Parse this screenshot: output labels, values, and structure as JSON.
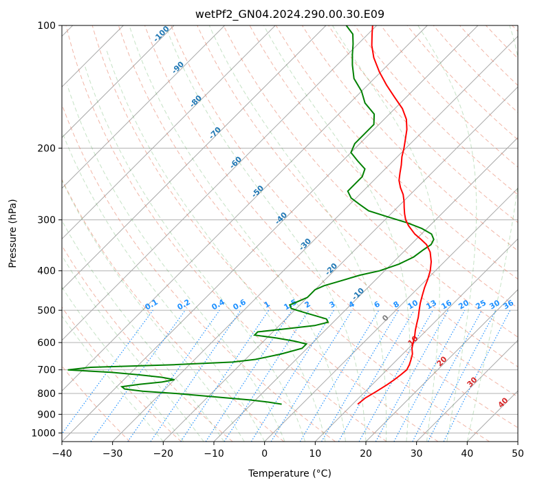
{
  "chart_data": {
    "type": "line",
    "title": "wetPf2_GN04.2024.290.00.30.E09",
    "xlabel": "Temperature (°C)",
    "ylabel": "Pressure (hPa)",
    "xlim": [
      -40,
      50
    ],
    "ylim": [
      1050,
      100
    ],
    "y_scale": "log",
    "grid": true,
    "x_ticks": [
      -40,
      -30,
      -20,
      -10,
      0,
      10,
      20,
      30,
      40,
      50
    ],
    "y_ticks": [
      100,
      200,
      300,
      400,
      500,
      600,
      700,
      800,
      900,
      1000
    ],
    "temperature": {
      "color": "#ff0000",
      "points": [
        [
          850,
          11
        ],
        [
          820,
          11.3
        ],
        [
          790,
          12.2
        ],
        [
          760,
          13
        ],
        [
          740,
          13.4
        ],
        [
          720,
          13.7
        ],
        [
          700,
          13.9
        ],
        [
          680,
          13.4
        ],
        [
          660,
          12.7
        ],
        [
          640,
          11.9
        ],
        [
          620,
          10.7
        ],
        [
          600,
          9.8
        ],
        [
          580,
          8.9
        ],
        [
          560,
          7.8
        ],
        [
          540,
          6.8
        ],
        [
          520,
          5.8
        ],
        [
          500,
          4.6
        ],
        [
          480,
          3.4
        ],
        [
          460,
          2.3
        ],
        [
          440,
          1.2
        ],
        [
          420,
          0.2
        ],
        [
          400,
          -1.0
        ],
        [
          380,
          -2.6
        ],
        [
          360,
          -4.7
        ],
        [
          345,
          -6.9
        ],
        [
          335,
          -9.0
        ],
        [
          325,
          -11.3
        ],
        [
          310,
          -14.2
        ],
        [
          300,
          -15.9
        ],
        [
          290,
          -17.3
        ],
        [
          280,
          -18.6
        ],
        [
          270,
          -19.9
        ],
        [
          260,
          -21.4
        ],
        [
          250,
          -23.3
        ],
        [
          240,
          -25.0
        ],
        [
          230,
          -26.3
        ],
        [
          220,
          -27.6
        ],
        [
          210,
          -29.1
        ],
        [
          200,
          -30.4
        ],
        [
          190,
          -31.9
        ],
        [
          180,
          -33.5
        ],
        [
          170,
          -35.6
        ],
        [
          160,
          -38.5
        ],
        [
          150,
          -42.3
        ],
        [
          140,
          -46.3
        ],
        [
          130,
          -50.3
        ],
        [
          120,
          -54.2
        ],
        [
          112,
          -57.0
        ],
        [
          105,
          -59.2
        ],
        [
          100,
          -60.8
        ]
      ]
    },
    "dewpoint": {
      "color": "#008000",
      "points": [
        [
          850,
          -4
        ],
        [
          840,
          -7
        ],
        [
          830,
          -11
        ],
        [
          815,
          -19
        ],
        [
          800,
          -27
        ],
        [
          790,
          -34
        ],
        [
          780,
          -38
        ],
        [
          770,
          -39
        ],
        [
          760,
          -36
        ],
        [
          750,
          -32
        ],
        [
          740,
          -30
        ],
        [
          730,
          -33
        ],
        [
          720,
          -38
        ],
        [
          710,
          -44
        ],
        [
          700,
          -53
        ],
        [
          690,
          -49
        ],
        [
          680,
          -33
        ],
        [
          670,
          -22
        ],
        [
          660,
          -18
        ],
        [
          640,
          -14
        ],
        [
          620,
          -11
        ],
        [
          605,
          -11
        ],
        [
          595,
          -14
        ],
        [
          585,
          -18
        ],
        [
          575,
          -23
        ],
        [
          565,
          -23
        ],
        [
          555,
          -18
        ],
        [
          545,
          -13
        ],
        [
          535,
          -11
        ],
        [
          525,
          -12
        ],
        [
          515,
          -15
        ],
        [
          505,
          -18
        ],
        [
          495,
          -21
        ],
        [
          485,
          -22
        ],
        [
          475,
          -21
        ],
        [
          465,
          -20
        ],
        [
          455,
          -20
        ],
        [
          445,
          -20
        ],
        [
          435,
          -19
        ],
        [
          425,
          -17
        ],
        [
          410,
          -14
        ],
        [
          400,
          -11
        ],
        [
          385,
          -8.5
        ],
        [
          370,
          -7
        ],
        [
          355,
          -6.5
        ],
        [
          345,
          -6
        ],
        [
          335,
          -6.5
        ],
        [
          325,
          -8
        ],
        [
          315,
          -11
        ],
        [
          305,
          -15
        ],
        [
          295,
          -20
        ],
        [
          285,
          -25
        ],
        [
          275,
          -28
        ],
        [
          265,
          -31
        ],
        [
          255,
          -33
        ],
        [
          245,
          -33
        ],
        [
          235,
          -33
        ],
        [
          225,
          -34
        ],
        [
          215,
          -37
        ],
        [
          205,
          -40
        ],
        [
          195,
          -41
        ],
        [
          185,
          -41
        ],
        [
          175,
          -41
        ],
        [
          165,
          -43
        ],
        [
          155,
          -47
        ],
        [
          145,
          -50
        ],
        [
          135,
          -54
        ],
        [
          125,
          -57
        ],
        [
          118,
          -59
        ],
        [
          111,
          -61
        ],
        [
          105,
          -63
        ],
        [
          100,
          -66
        ]
      ]
    },
    "dry_adiabats": {
      "color": "#e8846a",
      "label_color": "#1f77b4",
      "labels": [
        "-100",
        "-90",
        "-80",
        "-70",
        "-60",
        "-50",
        "-40",
        "-30",
        "-20",
        "-10"
      ]
    },
    "moist_adiabats": {
      "color": "#3f9f3f",
      "label_color": "#d62728",
      "labels": [
        "0",
        "10",
        "20",
        "30",
        "40"
      ]
    },
    "mixing_ratio_lines": {
      "color": "#1e90ff",
      "values": [
        "0.1",
        "0.2",
        "0.4",
        "0.6",
        "1",
        "1.5",
        "2",
        "3",
        "4",
        "6",
        "8",
        "10",
        "13",
        "16",
        "20",
        "25",
        "30",
        "36"
      ]
    }
  }
}
